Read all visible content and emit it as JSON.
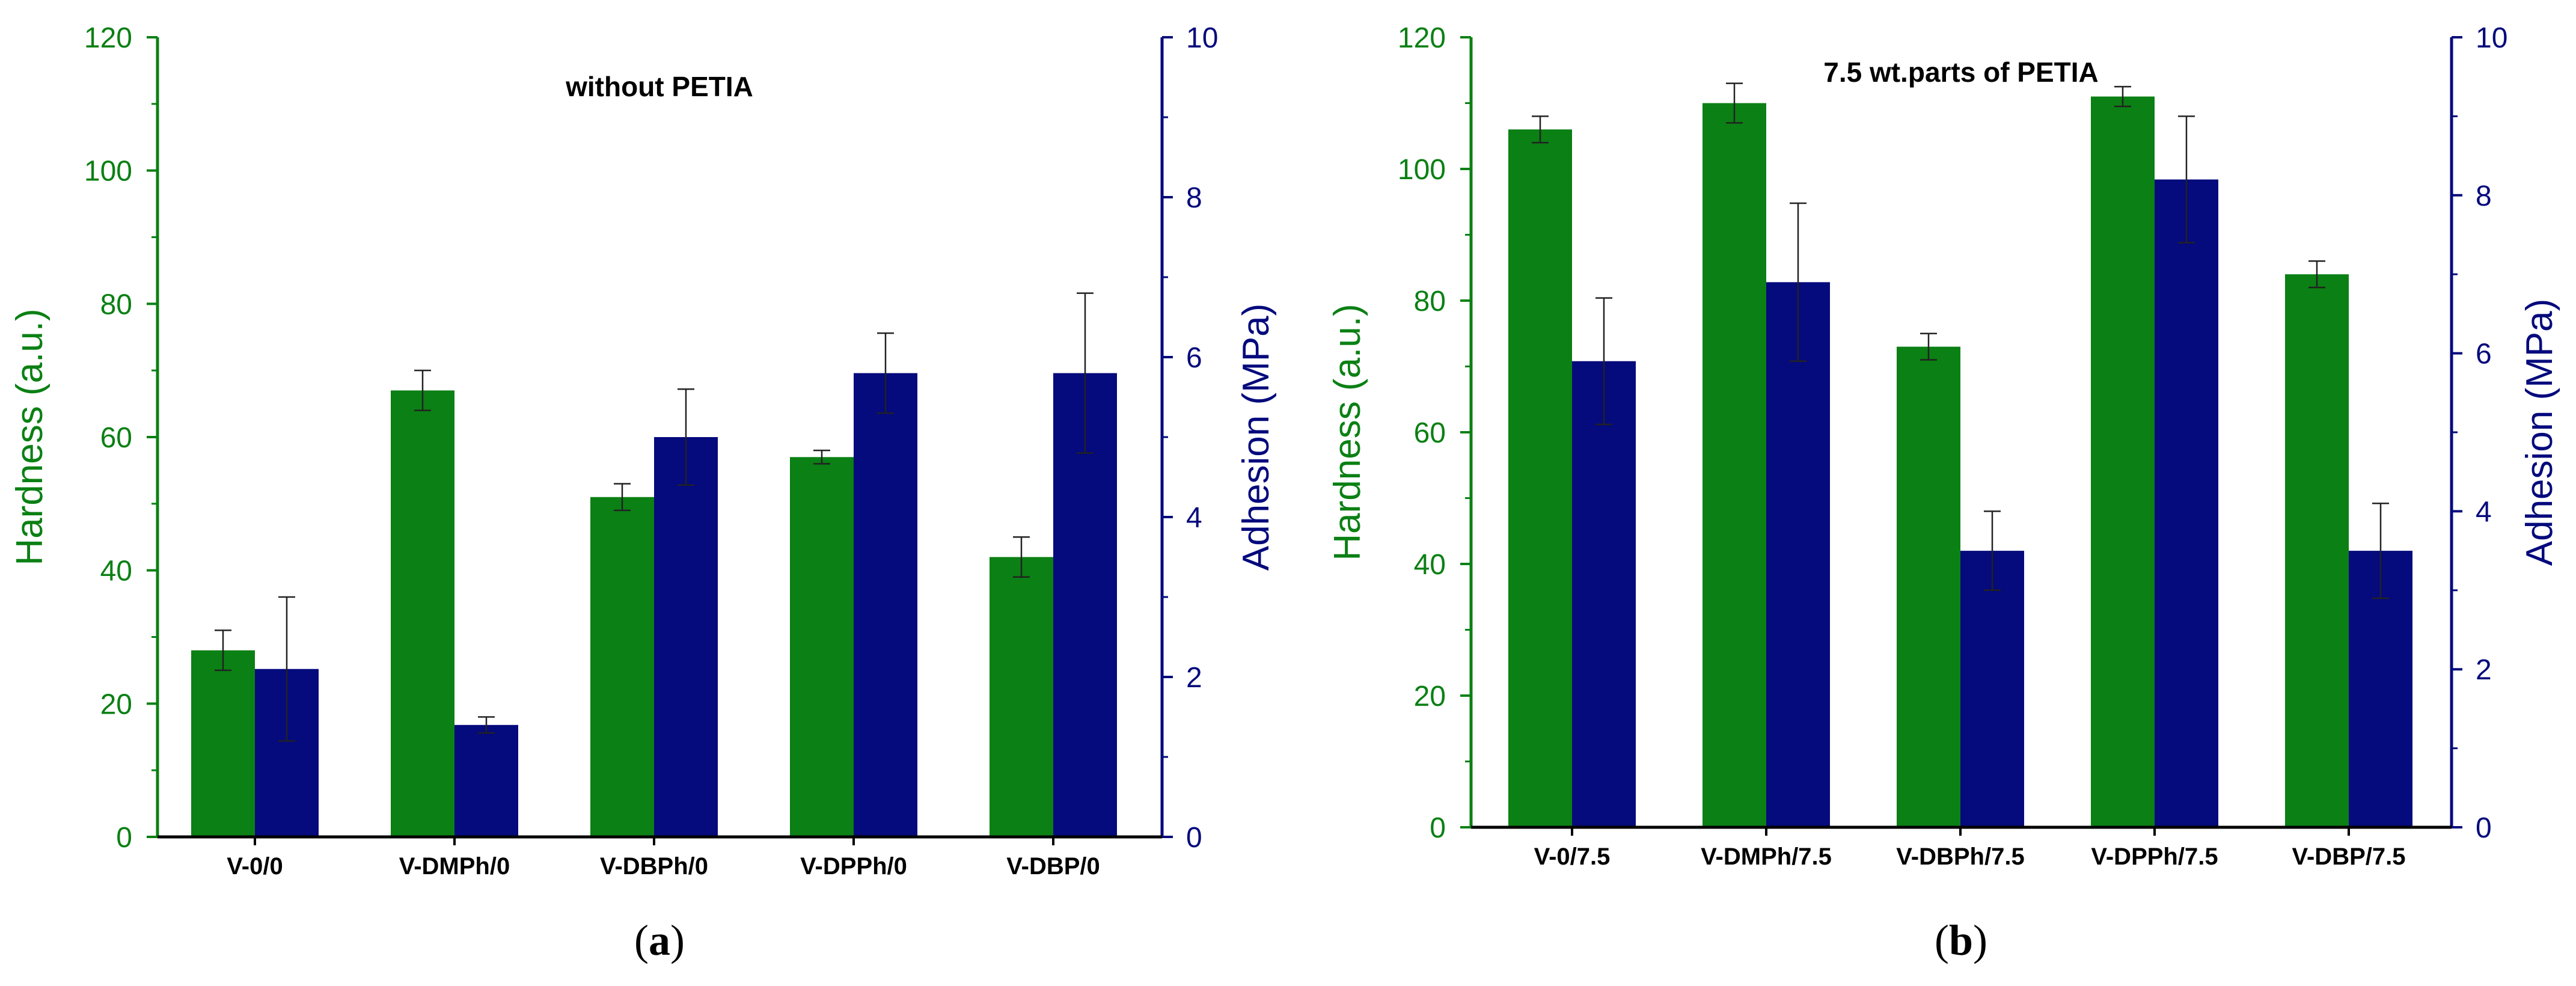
{
  "colors": {
    "hardness": "#0b8014",
    "adhesion": "#050a7c",
    "axis_left": "#0b8014",
    "axis_right": "#050a7c",
    "axis_frame": "#000000"
  },
  "chart_data": [
    {
      "type": "bar",
      "panel_label": "a",
      "title": "without PETIA",
      "categories": [
        "V-0/0",
        "V-DMPh/0",
        "V-DBPh/0",
        "V-DPPh/0",
        "V-DBP/0"
      ],
      "ylabel_left": "Hardness (a.u.)",
      "ylabel_right": "Adhesion (MPa)",
      "ylim_left": [
        0,
        120
      ],
      "ylim_right": [
        0,
        10
      ],
      "yticks_left": [
        0,
        20,
        40,
        60,
        80,
        100,
        120
      ],
      "yticks_right": [
        0,
        2,
        4,
        6,
        8,
        10
      ],
      "series": [
        {
          "name": "Hardness",
          "axis": "left",
          "values": [
            28,
            67,
            51,
            57,
            42
          ],
          "errors": [
            3,
            3,
            2,
            1,
            3
          ]
        },
        {
          "name": "Adhesion",
          "axis": "right",
          "values": [
            2.1,
            1.4,
            5.0,
            5.8,
            5.8
          ],
          "errors": [
            0.9,
            0.1,
            0.6,
            0.5,
            1.0
          ]
        }
      ]
    },
    {
      "type": "bar",
      "panel_label": "b",
      "title": "7.5 wt.parts of PETIA",
      "categories": [
        "V-0/7.5",
        "V-DMPh/7.5",
        "V-DBPh/7.5",
        "V-DPPh/7.5",
        "V-DBP/7.5"
      ],
      "ylabel_left": "Hardness (a.u.)",
      "ylabel_right": "Adhesion (MPa)",
      "ylim_left": [
        0,
        120
      ],
      "ylim_right": [
        0,
        10
      ],
      "yticks_left": [
        0,
        20,
        40,
        60,
        80,
        100,
        120
      ],
      "yticks_right": [
        0,
        2,
        4,
        6,
        8,
        10
      ],
      "series": [
        {
          "name": "Hardness",
          "axis": "left",
          "values": [
            106,
            110,
            73,
            111,
            84
          ],
          "errors": [
            2,
            3,
            2,
            1.5,
            2
          ]
        },
        {
          "name": "Adhesion",
          "axis": "right",
          "values": [
            5.9,
            6.9,
            3.5,
            8.2,
            3.5
          ],
          "errors": [
            0.8,
            1.0,
            0.5,
            0.8,
            0.6
          ]
        }
      ]
    }
  ]
}
